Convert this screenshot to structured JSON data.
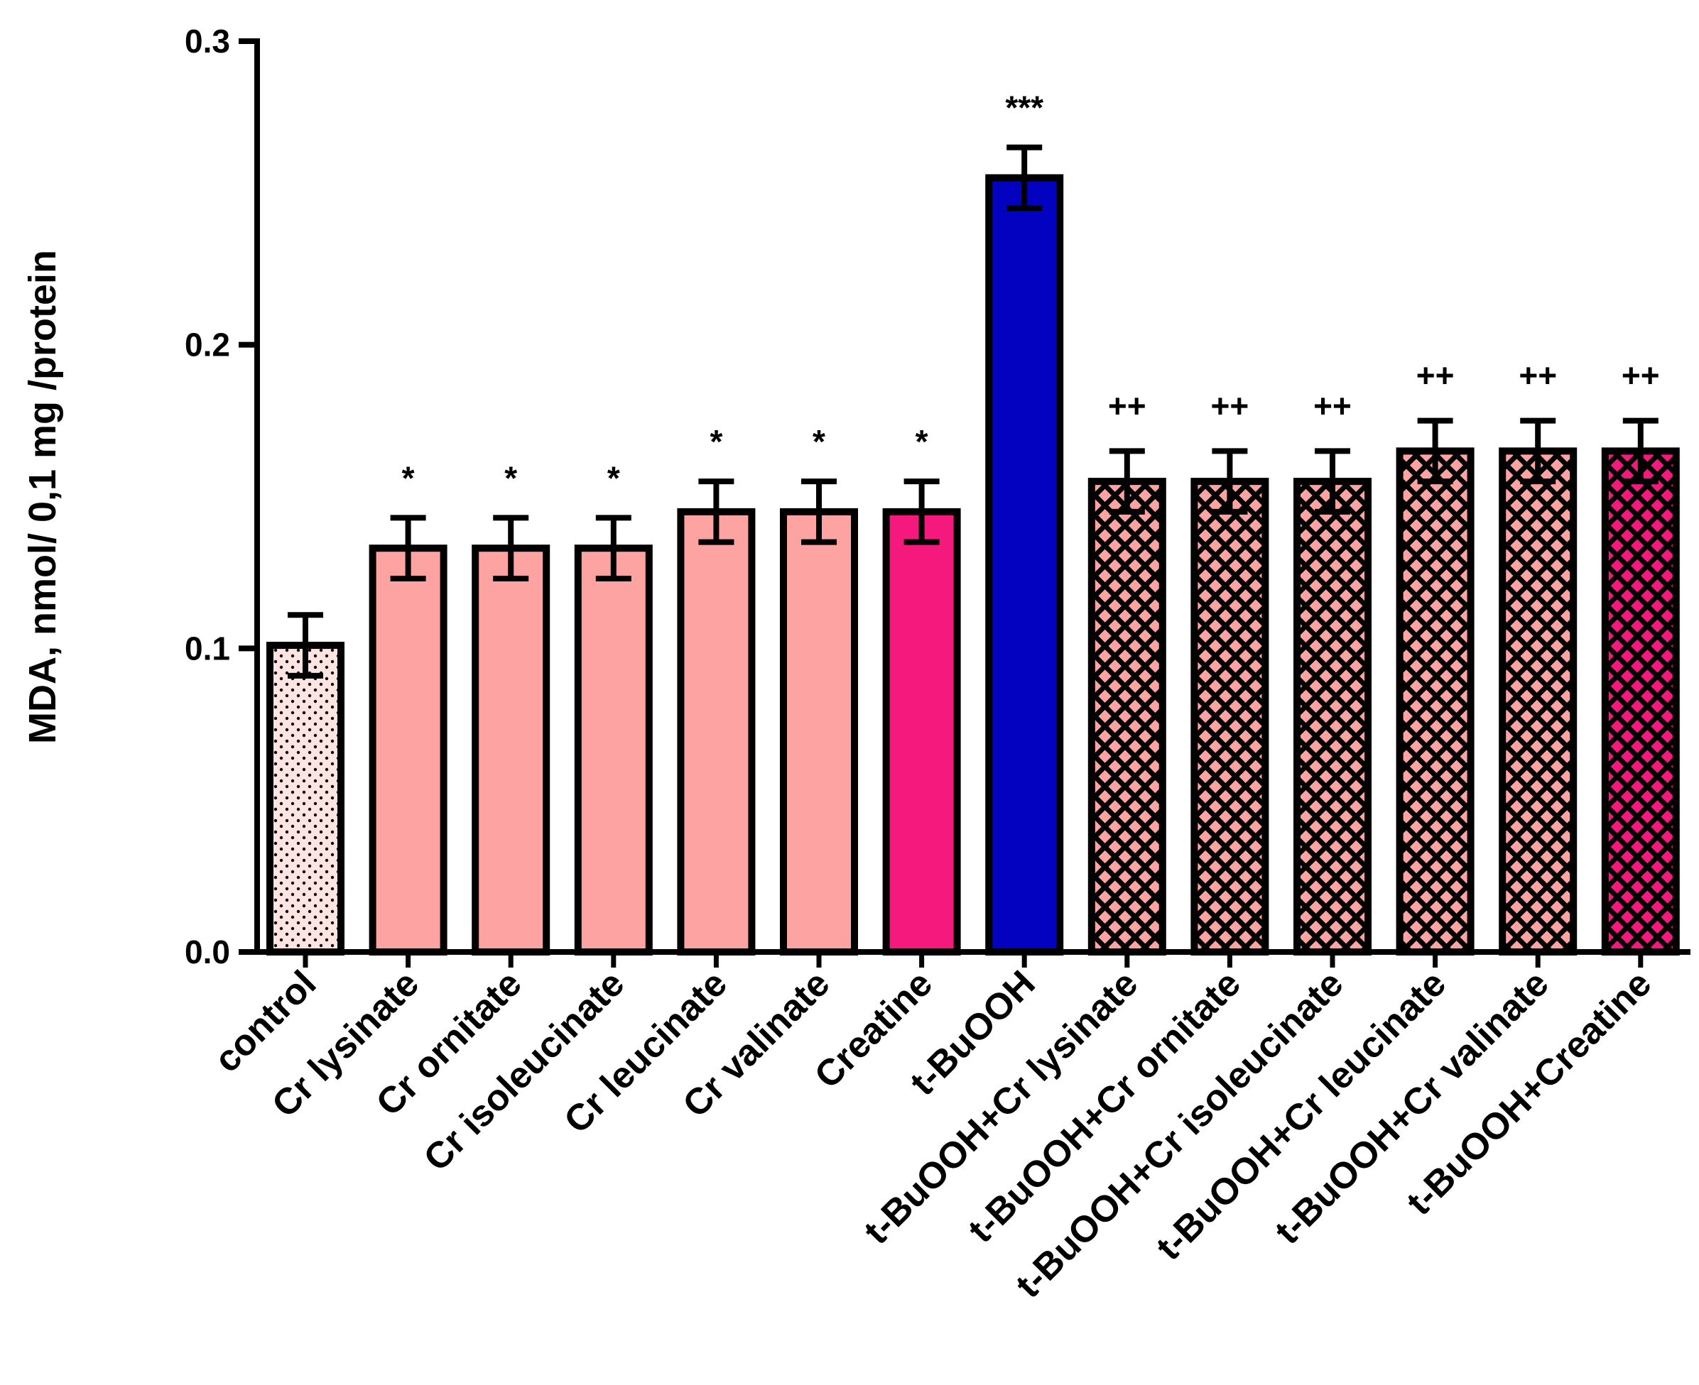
{
  "chart_data": {
    "type": "bar",
    "title": "",
    "xlabel": "",
    "ylabel": "MDA, nmol/ 0,1 mg /protein",
    "ylim": [
      0,
      0.3
    ],
    "yticks": [
      0.0,
      0.1,
      0.2,
      0.3
    ],
    "ytick_labels": [
      "0.0",
      "0.1",
      "0.2",
      "0.3"
    ],
    "grid": false,
    "categories": [
      "control",
      "Cr lysinate",
      "Cr ornitate",
      "Cr isoleucinate",
      "Cr leucinate",
      "Cr valinate",
      "Creatine",
      "t-BuOOH",
      "t-BuOOH+Cr lysinate",
      "t-BuOOH+Cr ornitate",
      "t-BuOOH+Cr isoleucinate",
      "t-BuOOH+Cr leucinate",
      "t-BuOOH+Cr valinate",
      "t-BuOOH+Creatine"
    ],
    "values": [
      0.101,
      0.133,
      0.133,
      0.133,
      0.145,
      0.145,
      0.145,
      0.255,
      0.155,
      0.155,
      0.155,
      0.165,
      0.165,
      0.165
    ],
    "errors": [
      0.01,
      0.01,
      0.01,
      0.01,
      0.01,
      0.01,
      0.01,
      0.01,
      0.01,
      0.01,
      0.01,
      0.01,
      0.01,
      0.01
    ],
    "significance": [
      "",
      "*",
      "*",
      "*",
      "*",
      "*",
      "*",
      "***",
      "++",
      "++",
      "++",
      "++",
      "++",
      "++"
    ],
    "fills": [
      {
        "color": "#fde3e1",
        "pattern": "dots"
      },
      {
        "color": "#fda3a1",
        "pattern": "none"
      },
      {
        "color": "#fda3a1",
        "pattern": "none"
      },
      {
        "color": "#fda3a1",
        "pattern": "none"
      },
      {
        "color": "#fda3a1",
        "pattern": "none"
      },
      {
        "color": "#fda3a1",
        "pattern": "none"
      },
      {
        "color": "#f5197e",
        "pattern": "none"
      },
      {
        "color": "#0202c0",
        "pattern": "none"
      },
      {
        "color": "#fda3a1",
        "pattern": "crosshatch"
      },
      {
        "color": "#fda3a1",
        "pattern": "crosshatch"
      },
      {
        "color": "#fda3a1",
        "pattern": "crosshatch"
      },
      {
        "color": "#fda3a1",
        "pattern": "crosshatch"
      },
      {
        "color": "#fda3a1",
        "pattern": "crosshatch"
      },
      {
        "color": "#f5197e",
        "pattern": "crosshatch"
      }
    ]
  }
}
